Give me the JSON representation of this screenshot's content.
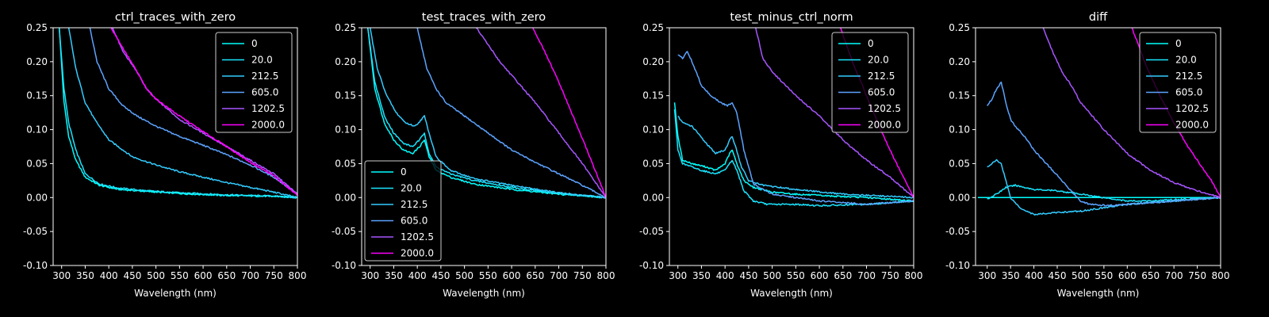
{
  "figure": {
    "background": "#000000",
    "text_color": "#ffffff",
    "axis_color": "#ffffff"
  },
  "legend_labels": [
    "0",
    "20.0",
    "212.5",
    "605.0",
    "1202.5",
    "2000.0"
  ],
  "series_colors": [
    "#00ffff",
    "#1ae5ff",
    "#33ccff",
    "#5ca3ff",
    "#a855ff",
    "#ff00ff"
  ],
  "chart_data": [
    {
      "type": "line",
      "title": "ctrl_traces_with_zero",
      "xlabel": "Wavelength (nm)",
      "ylabel": "",
      "xlim": [
        282,
        800
      ],
      "ylim": [
        -0.1,
        0.25
      ],
      "xticks": [
        "300",
        "350",
        "400",
        "450",
        "500",
        "550",
        "600",
        "650",
        "700",
        "750",
        "800"
      ],
      "yticks": [
        "-0.10",
        "-0.05",
        "0.00",
        "0.05",
        "0.10",
        "0.15",
        "0.20",
        "0.25"
      ],
      "legend_position": "upper right",
      "series": [
        {
          "name": "0",
          "x": [
            295,
            305,
            315,
            330,
            350,
            380,
            420,
            480,
            550,
            650,
            750,
            800
          ],
          "y": [
            0.25,
            0.14,
            0.09,
            0.055,
            0.03,
            0.018,
            0.012,
            0.009,
            0.006,
            0.003,
            0.002,
            0.0
          ]
        },
        {
          "name": "20.0",
          "x": [
            295,
            305,
            315,
            330,
            350,
            380,
            420,
            480,
            550,
            650,
            750,
            800
          ],
          "y": [
            0.25,
            0.16,
            0.11,
            0.07,
            0.035,
            0.02,
            0.014,
            0.01,
            0.007,
            0.004,
            0.002,
            0.0
          ]
        },
        {
          "name": "212.5",
          "x": [
            315,
            330,
            350,
            370,
            400,
            450,
            500,
            550,
            600,
            650,
            700,
            750,
            800
          ],
          "y": [
            0.25,
            0.19,
            0.14,
            0.115,
            0.085,
            0.06,
            0.048,
            0.038,
            0.03,
            0.022,
            0.015,
            0.008,
            0.0
          ]
        },
        {
          "name": "605.0",
          "x": [
            360,
            375,
            400,
            430,
            460,
            500,
            550,
            600,
            650,
            700,
            750,
            800
          ],
          "y": [
            0.25,
            0.2,
            0.16,
            0.135,
            0.12,
            0.105,
            0.09,
            0.077,
            0.063,
            0.048,
            0.03,
            0.005
          ]
        },
        {
          "name": "1202.5",
          "x": [
            408,
            430,
            460,
            480,
            500,
            550,
            600,
            650,
            700,
            750,
            800
          ],
          "y": [
            0.25,
            0.215,
            0.185,
            0.16,
            0.145,
            0.115,
            0.095,
            0.075,
            0.055,
            0.035,
            0.005
          ]
        },
        {
          "name": "2000.0",
          "x": [
            405,
            430,
            460,
            480,
            500,
            550,
            600,
            650,
            700,
            750,
            800
          ],
          "y": [
            0.25,
            0.22,
            0.185,
            0.16,
            0.145,
            0.12,
            0.097,
            0.075,
            0.052,
            0.032,
            0.003
          ]
        }
      ]
    },
    {
      "type": "line",
      "title": "test_traces_with_zero",
      "xlabel": "Wavelength (nm)",
      "ylabel": "",
      "xlim": [
        282,
        800
      ],
      "ylim": [
        -0.1,
        0.25
      ],
      "xticks": [
        "300",
        "350",
        "400",
        "450",
        "500",
        "550",
        "600",
        "650",
        "700",
        "750",
        "800"
      ],
      "yticks": [
        "-0.10",
        "-0.05",
        "0.00",
        "0.05",
        "0.10",
        "0.15",
        "0.20",
        "0.25"
      ],
      "legend_position": "lower left",
      "series": [
        {
          "name": "0",
          "x": [
            295,
            310,
            330,
            350,
            370,
            390,
            405,
            415,
            425,
            440,
            470,
            520,
            600,
            700,
            800
          ],
          "y": [
            0.25,
            0.16,
            0.11,
            0.085,
            0.07,
            0.065,
            0.075,
            0.085,
            0.06,
            0.04,
            0.03,
            0.02,
            0.012,
            0.005,
            0.0
          ]
        },
        {
          "name": "20.0",
          "x": [
            295,
            310,
            330,
            350,
            370,
            390,
            405,
            415,
            425,
            440,
            470,
            520,
            600,
            700,
            800
          ],
          "y": [
            0.25,
            0.17,
            0.12,
            0.095,
            0.08,
            0.075,
            0.085,
            0.095,
            0.065,
            0.045,
            0.035,
            0.025,
            0.015,
            0.006,
            0.0
          ]
        },
        {
          "name": "212.5",
          "x": [
            300,
            315,
            335,
            355,
            375,
            395,
            405,
            415,
            425,
            440,
            470,
            520,
            600,
            700,
            800
          ],
          "y": [
            0.25,
            0.19,
            0.15,
            0.125,
            0.11,
            0.105,
            0.112,
            0.12,
            0.095,
            0.06,
            0.04,
            0.028,
            0.018,
            0.007,
            0.0
          ]
        },
        {
          "name": "605.0",
          "x": [
            400,
            420,
            440,
            460,
            480,
            500,
            550,
            600,
            650,
            700,
            750,
            800
          ],
          "y": [
            0.25,
            0.19,
            0.16,
            0.14,
            0.13,
            0.12,
            0.095,
            0.07,
            0.052,
            0.035,
            0.018,
            0.0
          ]
        },
        {
          "name": "1202.5",
          "x": [
            525,
            550,
            575,
            600,
            650,
            700,
            750,
            800
          ],
          "y": [
            0.25,
            0.225,
            0.2,
            0.18,
            0.14,
            0.095,
            0.05,
            0.0
          ]
        },
        {
          "name": "2000.0",
          "x": [
            645,
            670,
            700,
            730,
            760,
            780,
            800
          ],
          "y": [
            0.25,
            0.215,
            0.17,
            0.12,
            0.07,
            0.035,
            0.0
          ]
        }
      ]
    },
    {
      "type": "line",
      "title": "test_minus_ctrl_norm",
      "xlabel": "Wavelength (nm)",
      "ylabel": "",
      "xlim": [
        282,
        800
      ],
      "ylim": [
        -0.1,
        0.25
      ],
      "xticks": [
        "300",
        "350",
        "400",
        "450",
        "500",
        "550",
        "600",
        "650",
        "700",
        "750",
        "800"
      ],
      "yticks": [
        "-0.10",
        "-0.05",
        "0.00",
        "0.05",
        "0.10",
        "0.15",
        "0.20",
        "0.25"
      ],
      "legend_position": "upper right",
      "series": [
        {
          "name": "0",
          "x": [
            293,
            300,
            310,
            330,
            360,
            380,
            400,
            410,
            415,
            425,
            440,
            460,
            500,
            550,
            600,
            700,
            800
          ],
          "y": [
            0.14,
            0.09,
            0.055,
            0.05,
            0.045,
            0.04,
            0.05,
            0.065,
            0.07,
            0.05,
            0.025,
            0.015,
            0.008,
            0.005,
            0.003,
            0.0,
            -0.005
          ]
        },
        {
          "name": "20.0",
          "x": [
            293,
            300,
            310,
            330,
            350,
            380,
            400,
            410,
            415,
            425,
            440,
            460,
            490,
            550,
            600,
            700,
            800
          ],
          "y": [
            0.13,
            0.07,
            0.05,
            0.045,
            0.04,
            0.035,
            0.04,
            0.05,
            0.055,
            0.04,
            0.01,
            -0.005,
            -0.01,
            -0.01,
            -0.012,
            -0.01,
            -0.005
          ]
        },
        {
          "name": "212.5",
          "x": [
            300,
            310,
            330,
            360,
            380,
            400,
            410,
            415,
            420,
            435,
            450,
            480,
            550,
            650,
            800
          ],
          "y": [
            0.12,
            0.11,
            0.105,
            0.08,
            0.065,
            0.07,
            0.085,
            0.09,
            0.08,
            0.045,
            0.025,
            0.018,
            0.012,
            0.005,
            0.0
          ]
        },
        {
          "name": "605.0",
          "x": [
            300,
            310,
            320,
            330,
            350,
            370,
            390,
            405,
            415,
            425,
            440,
            460,
            500,
            600,
            700,
            800
          ],
          "y": [
            0.21,
            0.205,
            0.215,
            0.2,
            0.165,
            0.15,
            0.14,
            0.135,
            0.14,
            0.125,
            0.07,
            0.02,
            0.005,
            -0.005,
            -0.01,
            -0.005
          ]
        },
        {
          "name": "1202.5",
          "x": [
            465,
            480,
            500,
            550,
            600,
            650,
            700,
            750,
            800
          ],
          "y": [
            0.25,
            0.205,
            0.185,
            0.15,
            0.12,
            0.085,
            0.055,
            0.03,
            0.0
          ]
        },
        {
          "name": "2000.0",
          "x": [
            645,
            670,
            700,
            730,
            760,
            800
          ],
          "y": [
            0.25,
            0.2,
            0.15,
            0.1,
            0.055,
            0.0
          ]
        }
      ]
    },
    {
      "type": "line",
      "title": "diff",
      "xlabel": "Wavelength (nm)",
      "ylabel": "",
      "xlim": [
        275,
        800
      ],
      "ylim": [
        -0.1,
        0.25
      ],
      "xticks": [
        "300",
        "350",
        "400",
        "450",
        "500",
        "550",
        "600",
        "650",
        "700",
        "750",
        "800"
      ],
      "yticks": [
        "-0.10",
        "-0.05",
        "0.00",
        "0.05",
        "0.10",
        "0.15",
        "0.20",
        "0.25"
      ],
      "legend_position": "upper right",
      "series": [
        {
          "name": "0",
          "x": [
            280,
            800
          ],
          "y": [
            0.0,
            0.0
          ]
        },
        {
          "name": "20.0",
          "x": [
            300,
            320,
            340,
            360,
            380,
            400,
            450,
            500,
            550,
            600,
            650,
            700,
            800
          ],
          "y": [
            -0.002,
            0.005,
            0.015,
            0.018,
            0.015,
            0.012,
            0.01,
            0.005,
            0.0,
            -0.005,
            -0.005,
            -0.003,
            0.0
          ]
        },
        {
          "name": "212.5",
          "x": [
            300,
            310,
            320,
            330,
            340,
            350,
            370,
            400,
            450,
            500,
            550,
            600,
            700,
            800
          ],
          "y": [
            0.045,
            0.05,
            0.055,
            0.05,
            0.025,
            0.0,
            -0.015,
            -0.025,
            -0.022,
            -0.02,
            -0.015,
            -0.01,
            -0.005,
            0.0
          ]
        },
        {
          "name": "605.0",
          "x": [
            300,
            310,
            320,
            330,
            340,
            350,
            360,
            380,
            400,
            420,
            440,
            460,
            480,
            500,
            520,
            560,
            600,
            700,
            800
          ],
          "y": [
            0.135,
            0.145,
            0.16,
            0.17,
            0.14,
            0.115,
            0.105,
            0.09,
            0.07,
            0.055,
            0.04,
            0.025,
            0.01,
            -0.005,
            -0.01,
            -0.012,
            -0.01,
            -0.005,
            0.0
          ]
        },
        {
          "name": "1202.5",
          "x": [
            420,
            440,
            460,
            480,
            500,
            550,
            600,
            650,
            700,
            750,
            800
          ],
          "y": [
            0.25,
            0.215,
            0.185,
            0.165,
            0.14,
            0.1,
            0.065,
            0.04,
            0.022,
            0.01,
            0.0
          ]
        },
        {
          "name": "2000.0",
          "x": [
            610,
            640,
            670,
            700,
            730,
            760,
            780,
            800
          ],
          "y": [
            0.25,
            0.195,
            0.15,
            0.11,
            0.075,
            0.045,
            0.025,
            0.0
          ]
        }
      ]
    }
  ]
}
